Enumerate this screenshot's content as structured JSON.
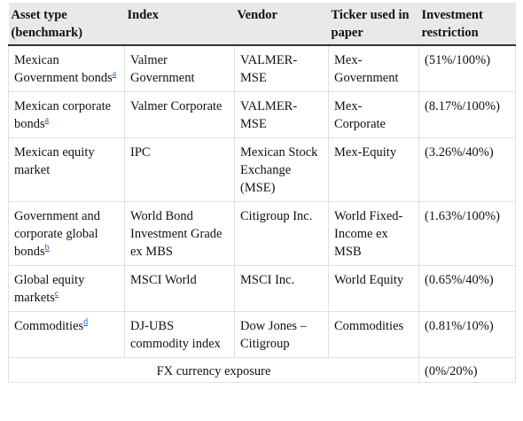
{
  "table": {
    "headers": [
      "Asset type (benchmark)",
      "Index",
      "Vendor",
      "Ticker used in paper",
      "Investment restriction"
    ],
    "rows": [
      {
        "asset": "Mexican Government bonds",
        "note": "a",
        "index": "Valmer Government",
        "vendor": "VALMER-MSE",
        "ticker": "Mex-Government",
        "restriction": "(51%/100%)"
      },
      {
        "asset": "Mexican corporate bonds",
        "note": "a",
        "index": "Valmer Corporate",
        "vendor": "VALMER-MSE",
        "ticker": "Mex-Corporate",
        "restriction": "(8.17%/100%)"
      },
      {
        "asset": "Mexican equity market",
        "note": "",
        "index": "IPC",
        "vendor": "Mexican Stock Exchange (MSE)",
        "ticker": "Mex-Equity",
        "restriction": "(3.26%/40%)"
      },
      {
        "asset": "Government and corporate global bonds",
        "note": "b",
        "index": "World Bond Investment Grade ex MBS",
        "vendor": "Citigroup Inc.",
        "ticker": "World Fixed-Income ex MSB",
        "restriction": "(1.63%/100%)"
      },
      {
        "asset": "Global equity markets",
        "note": "c",
        "index": "MSCI World",
        "vendor": "MSCI Inc.",
        "ticker": "World Equity",
        "restriction": "(0.65%/40%)"
      },
      {
        "asset": "Commodities",
        "note": "d",
        "index": "DJ-UBS commodity index",
        "vendor": "Dow Jones – Citigroup",
        "ticker": "Commodities",
        "restriction": "(0.81%/10%)"
      }
    ],
    "footer": {
      "label": "FX currency exposure",
      "restriction": "(0%/20%)"
    }
  }
}
